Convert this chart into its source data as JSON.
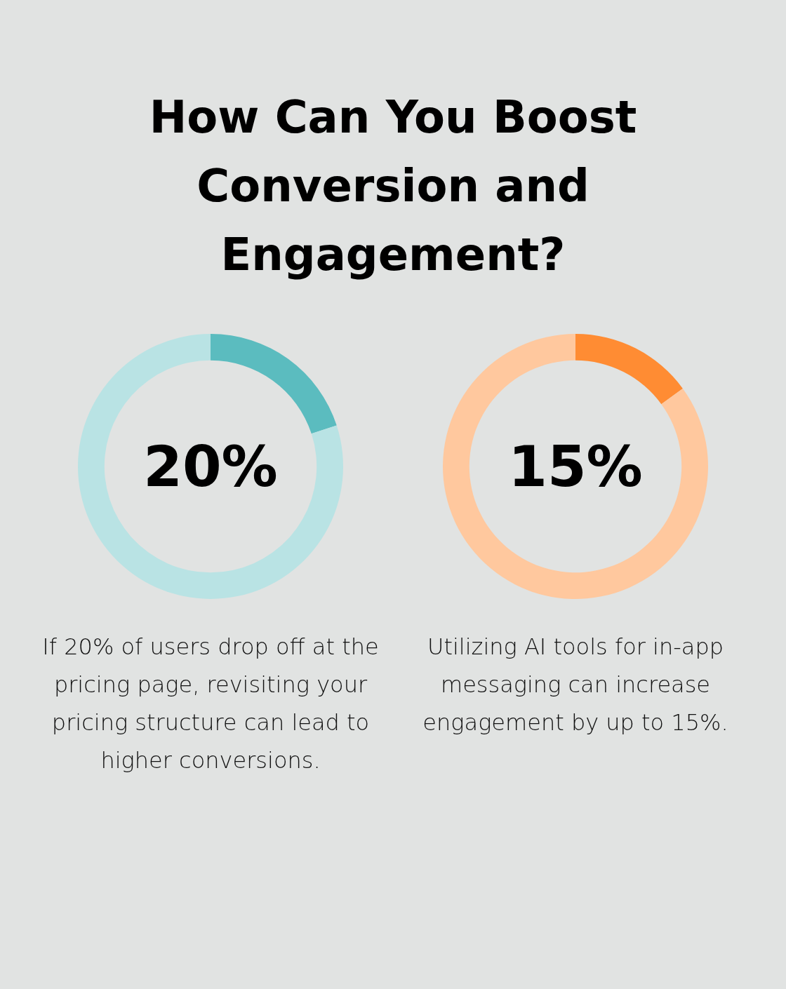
{
  "chart_data": [
    {
      "type": "donut",
      "title": "How Can You Boost Conversion and Engagement?",
      "categories": [
        null,
        null
      ],
      "values": [
        20,
        80
      ],
      "colors": [
        "#5bbcbf",
        "#b9e3e4"
      ],
      "annotations": [
        "20%",
        "If 20% of users drop off at the pricing page, revisiting your pricing structure can lead to higher conversions."
      ]
    },
    {
      "type": "donut",
      "categories": [
        null,
        null
      ],
      "values": [
        15,
        85
      ],
      "colors": [
        "#ff8c33",
        "#ffc89e"
      ],
      "annotations": [
        "15%",
        "Utilizing AI tools for in-app messaging can increase engagement by up to 15%."
      ]
    }
  ]
}
